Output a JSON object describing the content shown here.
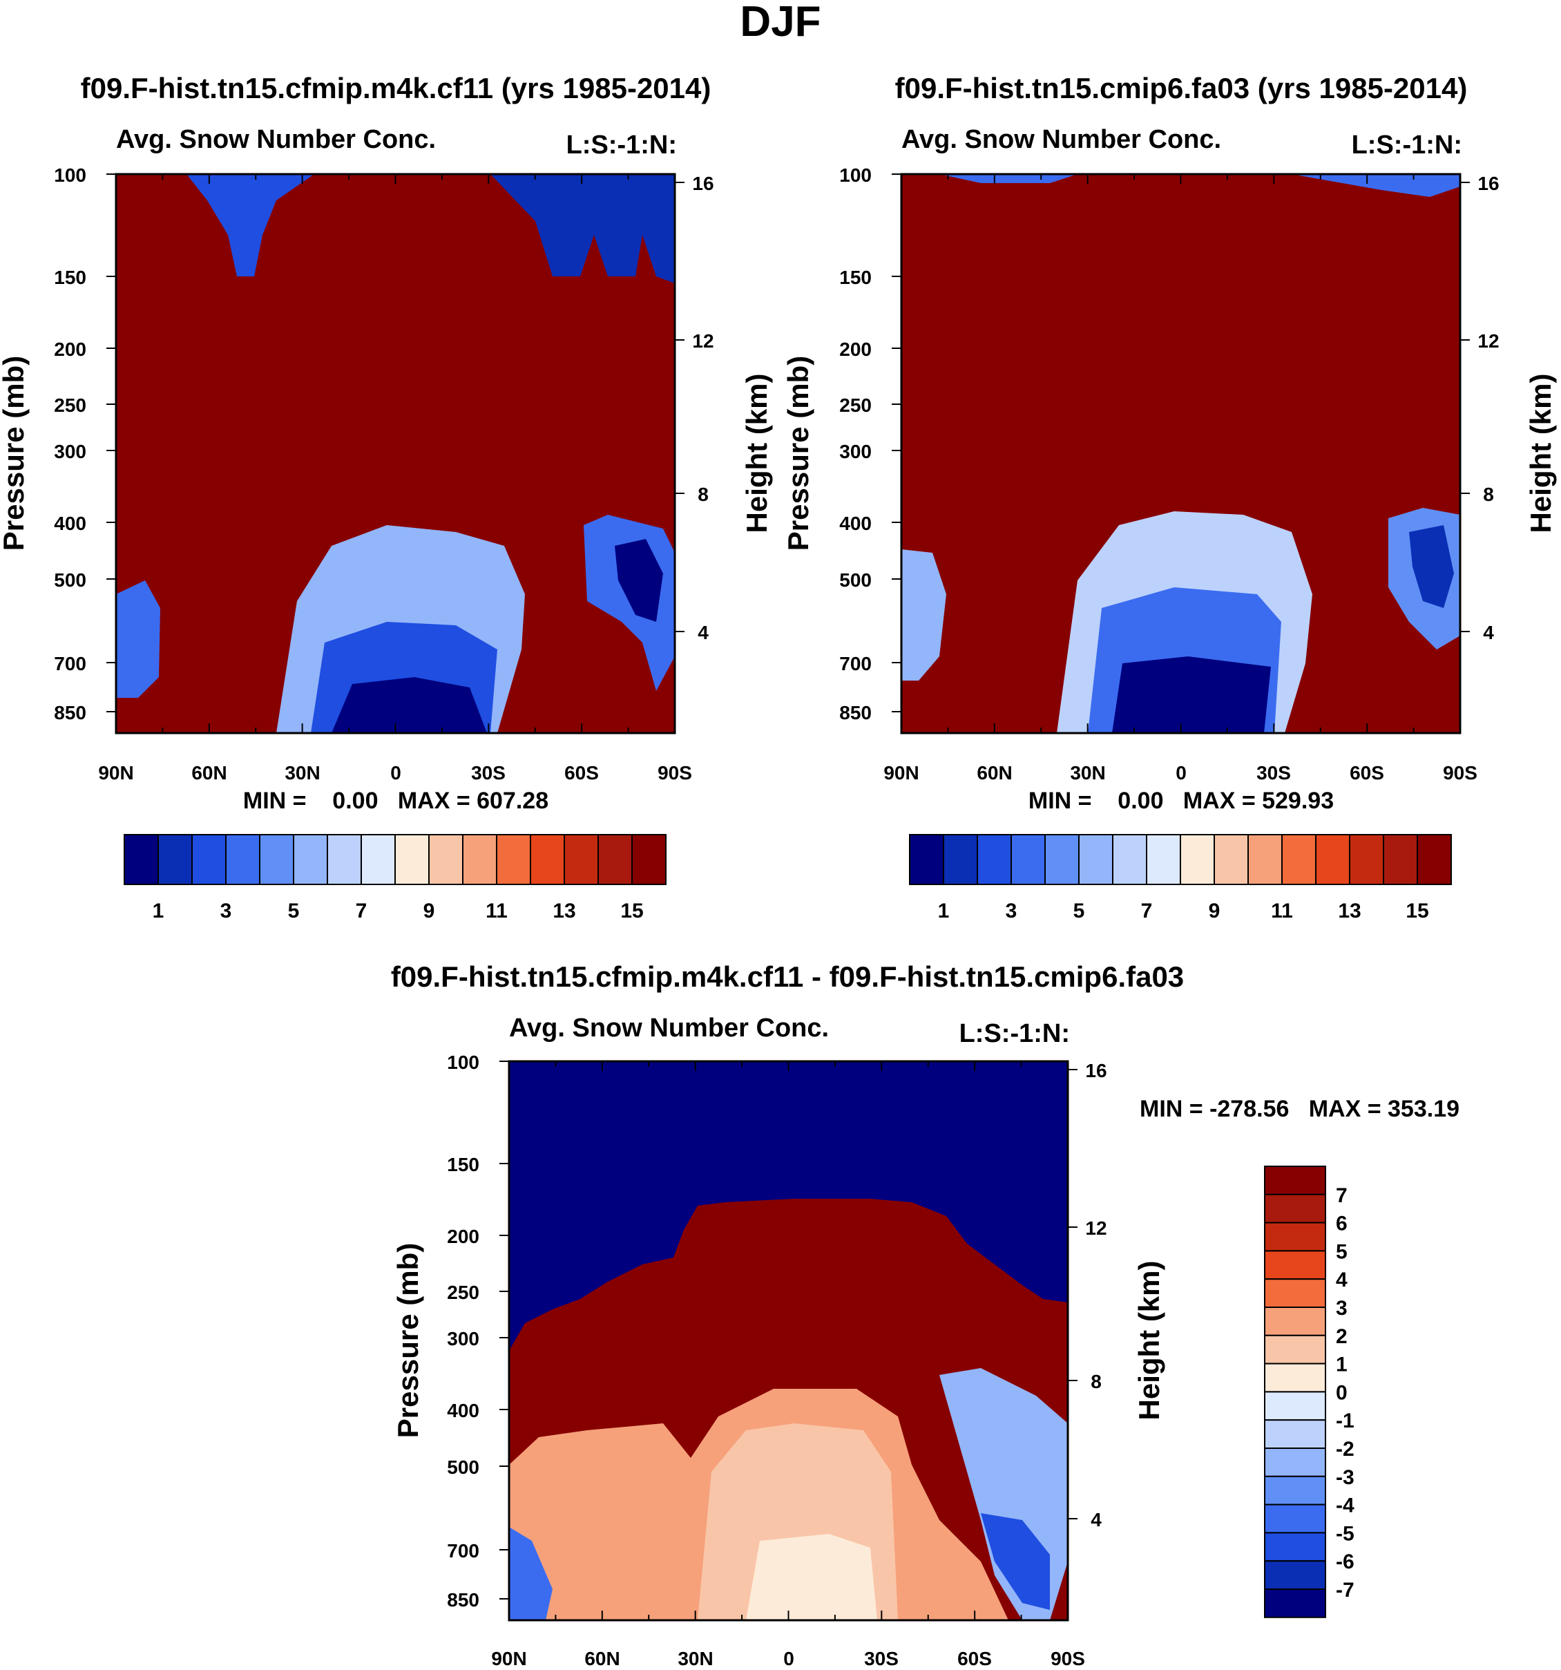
{
  "figure_title": "DJF",
  "chart_data": [
    {
      "type": "heatmap",
      "title": "f09.F-hist.tn15.cfmip.m4k.cf11 (yrs 1985-2014)",
      "subtitle_left": "Avg. Snow Number Conc.",
      "subtitle_right": "L:S:-1:N:",
      "ylabel": "Pressure (mb)",
      "ylabel_right": "Height (km)",
      "x_ticks": [
        "90N",
        "60N",
        "30N",
        "0",
        "30S",
        "60S",
        "90S"
      ],
      "y_ticks": [
        "100",
        "150",
        "200",
        "250",
        "300",
        "400",
        "500",
        "700",
        "850"
      ],
      "y_right_ticks": [
        "16",
        "12",
        "8",
        "4"
      ],
      "stats": "MIN =    0.00   MAX = 607.28",
      "colorbar_labels": [
        "1",
        "3",
        "5",
        "7",
        "9",
        "11",
        "13",
        "15"
      ],
      "colors": [
        "#00007f",
        "#0a2fb5",
        "#1f4ee0",
        "#3b6cf0",
        "#6090f5",
        "#93b5fa",
        "#bcd2fc",
        "#dde9fd",
        "#fdebd9",
        "#f9c5a8",
        "#f6a17a",
        "#f36c3b",
        "#e7451b",
        "#c42a10",
        "#a81a0d",
        "#870000"
      ]
    },
    {
      "type": "heatmap",
      "title": "f09.F-hist.tn15.cmip6.fa03 (yrs 1985-2014)",
      "subtitle_left": "Avg. Snow Number Conc.",
      "subtitle_right": "L:S:-1:N:",
      "ylabel": "Pressure (mb)",
      "ylabel_right": "Height (km)",
      "x_ticks": [
        "90N",
        "60N",
        "30N",
        "0",
        "30S",
        "60S",
        "90S"
      ],
      "y_ticks": [
        "100",
        "150",
        "200",
        "250",
        "300",
        "400",
        "500",
        "700",
        "850"
      ],
      "y_right_ticks": [
        "16",
        "12",
        "8",
        "4"
      ],
      "stats": "MIN =    0.00   MAX = 529.93",
      "colorbar_labels": [
        "1",
        "3",
        "5",
        "7",
        "9",
        "11",
        "13",
        "15"
      ],
      "colors": [
        "#00007f",
        "#0a2fb5",
        "#1f4ee0",
        "#3b6cf0",
        "#6090f5",
        "#93b5fa",
        "#bcd2fc",
        "#dde9fd",
        "#fdebd9",
        "#f9c5a8",
        "#f6a17a",
        "#f36c3b",
        "#e7451b",
        "#c42a10",
        "#a81a0d",
        "#870000"
      ]
    },
    {
      "type": "heatmap",
      "title": "f09.F-hist.tn15.cfmip.m4k.cf11 - f09.F-hist.tn15.cmip6.fa03",
      "subtitle_left": "Avg. Snow Number Conc.",
      "subtitle_right": "L:S:-1:N:",
      "ylabel": "Pressure (mb)",
      "ylabel_right": "Height (km)",
      "x_ticks": [
        "90N",
        "60N",
        "30N",
        "0",
        "30S",
        "60S",
        "90S"
      ],
      "y_ticks": [
        "100",
        "150",
        "200",
        "250",
        "300",
        "400",
        "500",
        "700",
        "850"
      ],
      "y_right_ticks": [
        "16",
        "12",
        "8",
        "4"
      ],
      "stats": "MIN = -278.56   MAX = 353.19",
      "colorbar_labels": [
        "7",
        "6",
        "5",
        "4",
        "3",
        "2",
        "1",
        "0",
        "-1",
        "-2",
        "-3",
        "-4",
        "-5",
        "-6",
        "-7"
      ],
      "colors": [
        "#870000",
        "#a81a0d",
        "#c42a10",
        "#e7451b",
        "#f36c3b",
        "#f6a17a",
        "#f9c5a8",
        "#fdebd9",
        "#dde9fd",
        "#bcd2fc",
        "#93b5fa",
        "#6090f5",
        "#3b6cf0",
        "#1f4ee0",
        "#0a2fb5",
        "#00007f"
      ]
    }
  ]
}
